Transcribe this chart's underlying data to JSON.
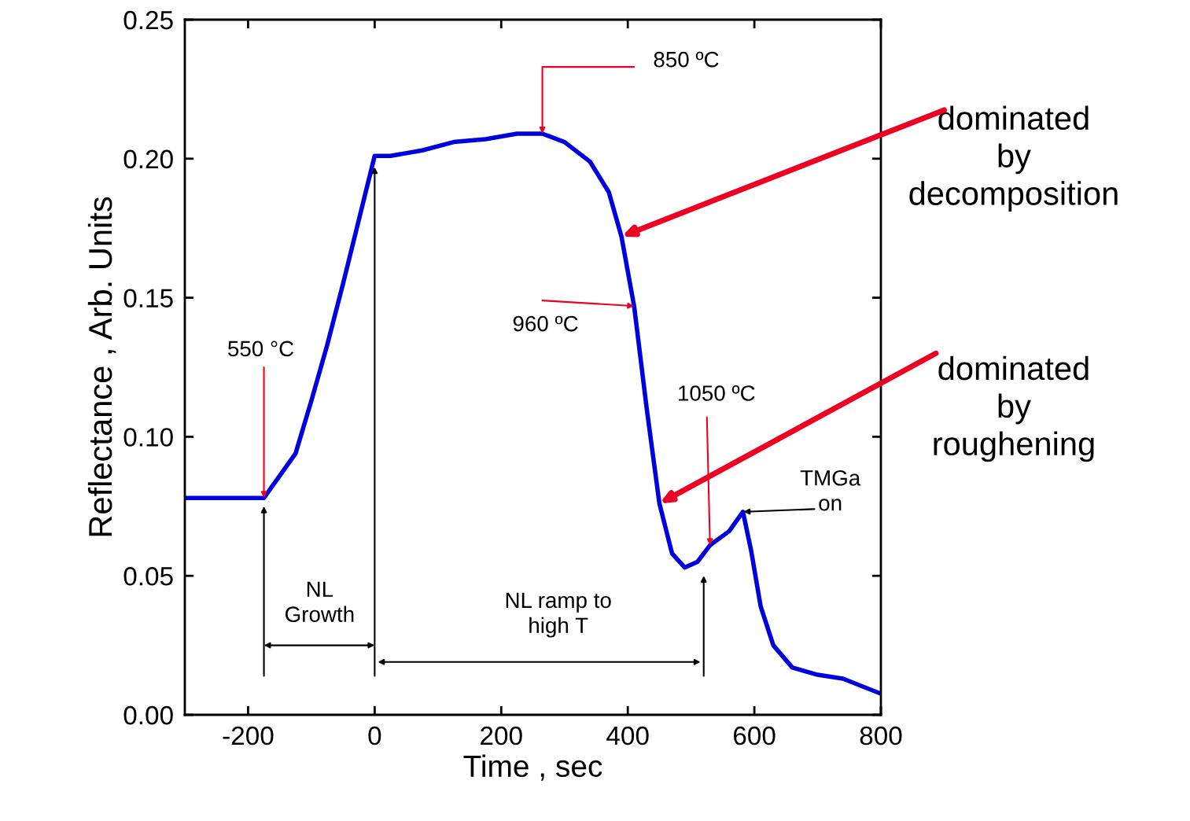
{
  "chart_data": {
    "type": "line",
    "xlabel": "Time , sec",
    "ylabel": "Reflectance , Arb. Units",
    "x": [
      -300,
      -175,
      -150,
      -125,
      -100,
      -75,
      -50,
      -25,
      0,
      25,
      75,
      125,
      175,
      225,
      265,
      300,
      340,
      370,
      390,
      410,
      430,
      450,
      470,
      490,
      510,
      530,
      560,
      582,
      595,
      610,
      630,
      660,
      700,
      740,
      800
    ],
    "series": [
      {
        "color": "#0000dd",
        "values": [
          0.078,
          0.078,
          0.086,
          0.094,
          0.113,
          0.133,
          0.155,
          0.178,
          0.201,
          0.201,
          0.203,
          0.206,
          0.207,
          0.209,
          0.209,
          0.206,
          0.199,
          0.188,
          0.172,
          0.147,
          0.11,
          0.076,
          0.058,
          0.053,
          0.055,
          0.061,
          0.066,
          0.073,
          0.059,
          0.039,
          0.025,
          0.017,
          0.0144,
          0.013,
          0.0076
        ]
      }
    ],
    "xlim": [
      -300,
      800
    ],
    "ylim": [
      0,
      0.25
    ],
    "xticks": [
      -200,
      0,
      200,
      400,
      600,
      800
    ],
    "yticks": [
      {
        "value": 0,
        "label": "0.00"
      },
      {
        "value": 0.05,
        "label": "0.05"
      },
      {
        "value": 0.1,
        "label": "0.10"
      },
      {
        "value": 0.15,
        "label": "0.15"
      },
      {
        "value": 0.2,
        "label": "0.20"
      },
      {
        "value": 0.25,
        "label": "0.25"
      }
    ],
    "grid": false,
    "legend": false,
    "marker": "none",
    "line_style": "solid",
    "annotations": [
      {
        "text": "550 °C",
        "x": -175,
        "y": 0.078
      },
      {
        "text": "850 ºC",
        "x": 265,
        "y": 0.209
      },
      {
        "text": "960 ºC",
        "x": 410,
        "y": 0.147
      },
      {
        "text": "1050 ºC",
        "x": 530,
        "y": 0.061
      },
      {
        "text": "TMGa\non",
        "x": 583,
        "y": 0.073
      },
      "NL\nGrowth",
      "NL ramp to\nhigh T",
      {
        "text": "dominated\nby\ndecomposition",
        "x": 390,
        "y": 0.172
      },
      {
        "text": "dominated\nby\nroughening",
        "x": 450,
        "y": 0.076
      }
    ]
  }
}
